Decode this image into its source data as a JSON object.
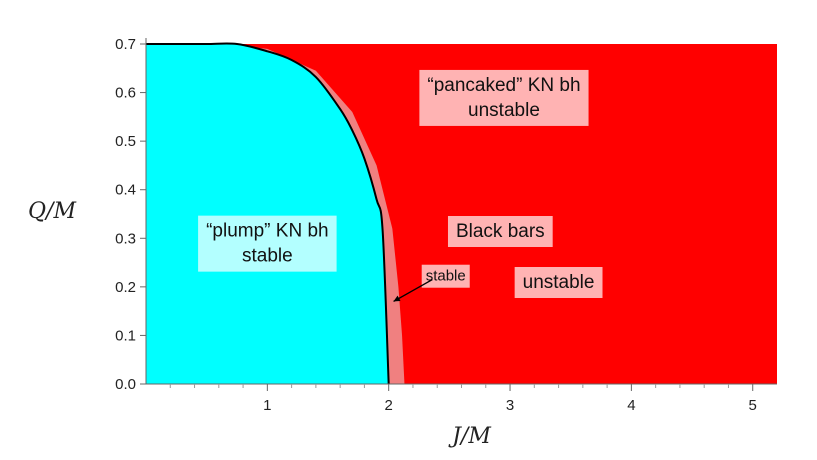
{
  "chart_data": {
    "type": "area",
    "title": "",
    "xlabel": "J/M",
    "ylabel": "Q/M",
    "xlim": [
      0,
      5.2
    ],
    "ylim": [
      0,
      0.7
    ],
    "x_ticks": [
      "1",
      "2",
      "3",
      "4",
      "5"
    ],
    "y_ticks": [
      "0.0",
      "0.1",
      "0.2",
      "0.3",
      "0.4",
      "0.5",
      "0.6",
      "0.7"
    ],
    "grid": false,
    "colors": {
      "stable": "#00ffff",
      "unstable": "#ff0000",
      "bar_stable": "#f08080",
      "boundary": "#000000"
    },
    "regions": [
      {
        "name": "plump",
        "lines": [
          "“plump” KN bh",
          "stable"
        ],
        "at": [
          1.0,
          0.29
        ]
      },
      {
        "name": "pancaked",
        "lines": [
          "“pancaked” KN bh",
          "unstable"
        ],
        "at": [
          2.95,
          0.59
        ]
      },
      {
        "name": "black-bars",
        "lines": [
          "Black bars"
        ],
        "at": [
          2.92,
          0.315
        ]
      },
      {
        "name": "unstable",
        "lines": [
          "unstable"
        ],
        "at": [
          3.4,
          0.21
        ]
      },
      {
        "name": "stable-arrow",
        "lines": [
          "stable"
        ],
        "at": [
          2.47,
          0.225
        ]
      }
    ],
    "boundary_curve": {
      "description": "extremal Kerr-Newman limit Q^2/M^2 + J^2/M^4 = 1",
      "x": [
        0.0,
        0.25,
        0.5,
        0.75,
        1.0,
        1.2,
        1.4,
        1.6,
        1.7,
        1.8,
        1.9,
        1.95,
        2.0
      ],
      "y": [
        0.707,
        0.707,
        0.705,
        0.7,
        0.685,
        0.667,
        0.632,
        0.566,
        0.522,
        0.464,
        0.38,
        0.316,
        0.0
      ]
    },
    "bar_stable_band": {
      "x_right": [
        0.6,
        1.0,
        1.4,
        1.7,
        1.9,
        2.03,
        2.08,
        2.11,
        2.13
      ],
      "y": [
        0.705,
        0.69,
        0.645,
        0.56,
        0.45,
        0.32,
        0.2,
        0.1,
        0.0
      ]
    }
  }
}
